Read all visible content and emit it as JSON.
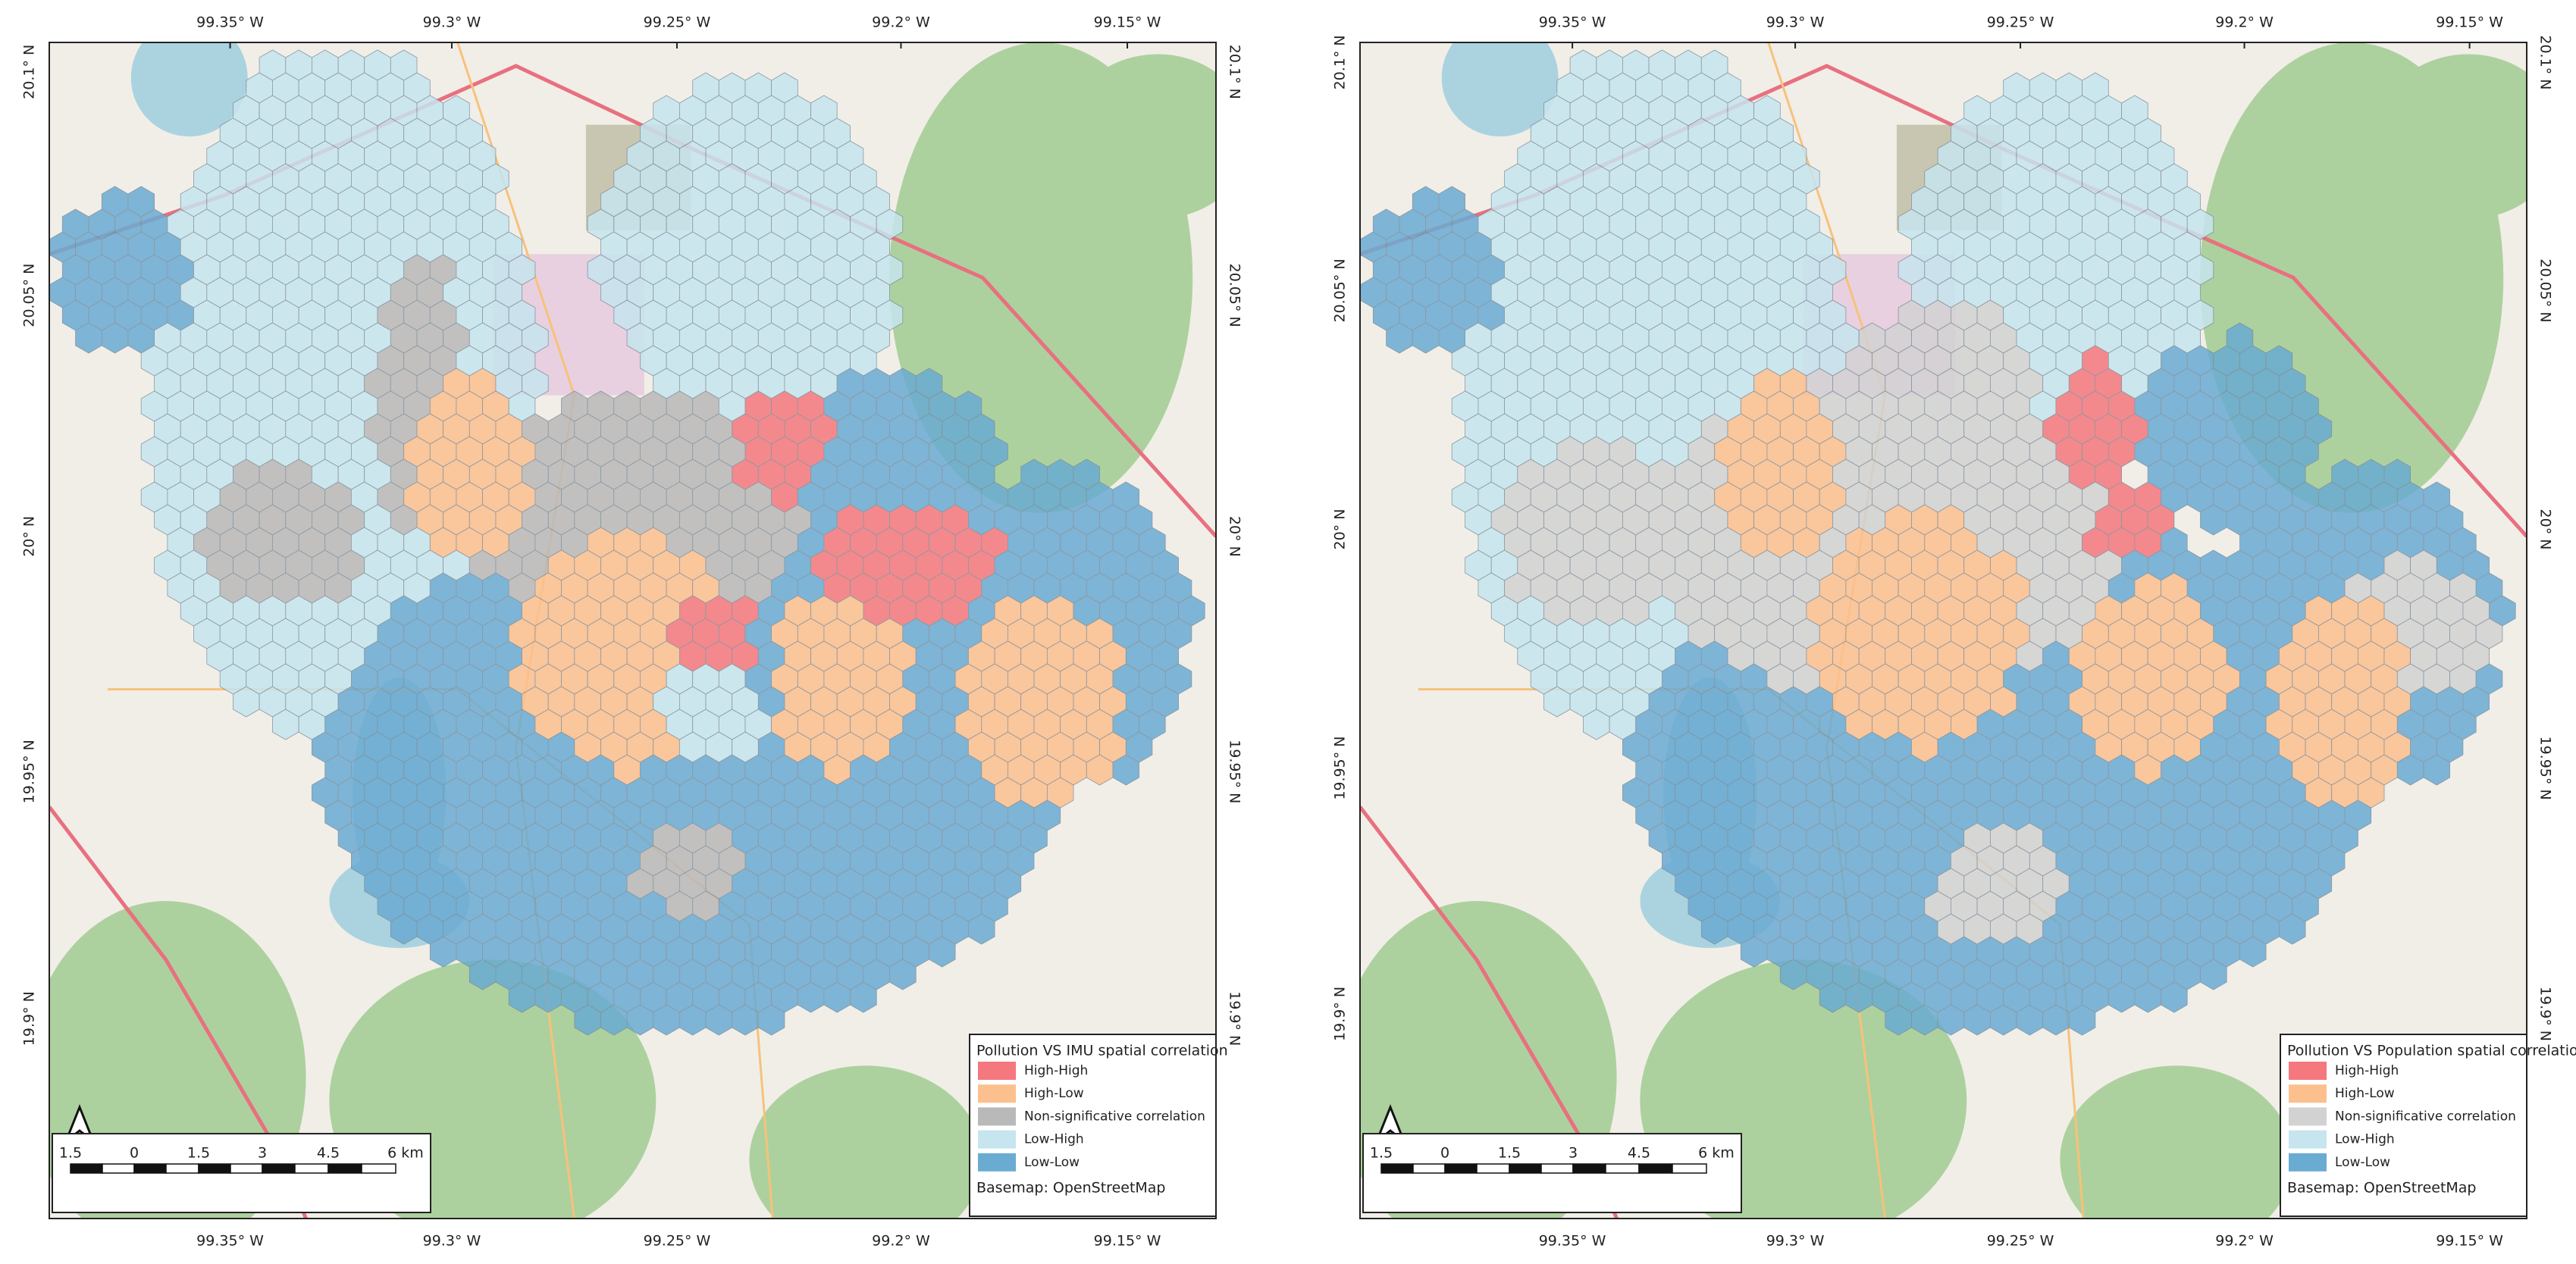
{
  "maps": [
    {
      "legend": {
        "title": "Pollution VS IMU spatial correlation",
        "items": [
          {
            "label": "High-High",
            "color": "#f4787e"
          },
          {
            "label": "High-Low",
            "color": "#fcc08e"
          },
          {
            "label": "Non-significative correlation",
            "color": "#b9b9b9"
          },
          {
            "label": "Low-High",
            "color": "#c6e5ef"
          },
          {
            "label": "Low-Low",
            "color": "#6aabd2"
          }
        ],
        "source": "Basemap: OpenStreetMap"
      },
      "scale_bar": [
        "1.5",
        "0",
        "1.5",
        "3",
        "4.5",
        "6 km"
      ],
      "lon_labels": [
        "99.35° W",
        "99.3° W",
        "99.25° W",
        "99.2° W",
        "99.15° W"
      ],
      "lat_labels": [
        "20.1° N",
        "20.05° N",
        "20° N",
        "19.95° N",
        "19.9° N"
      ]
    },
    {
      "legend": {
        "title": "Pollution VS Population  spatial correlation",
        "items": [
          {
            "label": "High-High",
            "color": "#f4787e"
          },
          {
            "label": "High-Low",
            "color": "#fcc08e"
          },
          {
            "label": "Non-significative correlation",
            "color": "#d2d2d2"
          },
          {
            "label": "Low-High",
            "color": "#c6e5ef"
          },
          {
            "label": "Low-Low",
            "color": "#6aabd2"
          }
        ],
        "source": "Basemap: OpenStreetMap"
      },
      "scale_bar": [
        "1.5",
        "0",
        "1.5",
        "3",
        "4.5",
        "6 km"
      ],
      "lon_labels": [
        "99.35° W",
        "99.3° W",
        "99.25° W",
        "99.2° W",
        "99.15° W"
      ],
      "lat_labels": [
        "20.1° N",
        "20.05° N",
        "20° N",
        "19.95° N",
        "19.9° N"
      ]
    }
  ]
}
